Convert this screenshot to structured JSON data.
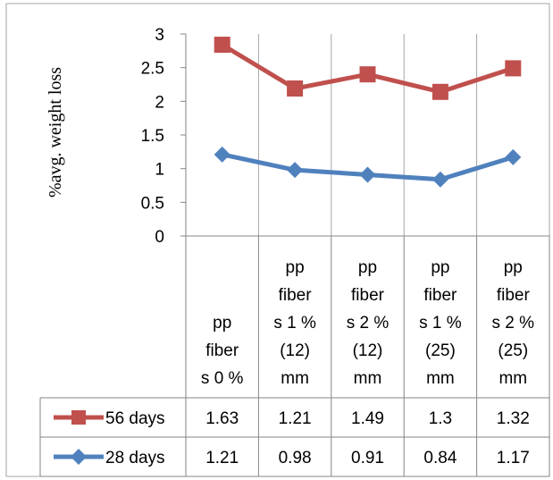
{
  "chart_data": {
    "type": "line",
    "title": "",
    "xlabel": "",
    "ylabel": "%avg. weight loss",
    "ylim": [
      0,
      3
    ],
    "yticks": [
      "0",
      "0.5",
      "1",
      "1.5",
      "2",
      "2.5",
      "3"
    ],
    "grid": "vertical",
    "legend": "data-table-left",
    "categories": [
      [
        "pp",
        "fiber",
        "s 0 %"
      ],
      [
        "pp",
        "fiber",
        "s 1 %",
        "(12)",
        "mm"
      ],
      [
        "pp",
        "fiber",
        "s 2 %",
        "(12)",
        "mm"
      ],
      [
        "pp",
        "fiber",
        "s 1 %",
        "(25)",
        "mm"
      ],
      [
        "pp",
        "fiber",
        "s 2 %",
        "(25)",
        "mm"
      ]
    ],
    "series": [
      {
        "name": "56 days",
        "color": "#c0504d",
        "marker": "square",
        "values": [
          2.84,
          2.19,
          2.4,
          2.14,
          2.49
        ],
        "table_values": [
          "1.63",
          "1.21",
          "1.49",
          "1.3",
          "1.32"
        ]
      },
      {
        "name": "28 days",
        "color": "#4f81bd",
        "marker": "diamond",
        "values": [
          1.21,
          0.98,
          0.91,
          0.84,
          1.17
        ],
        "table_values": [
          "1.21",
          "0.98",
          "0.91",
          "0.84",
          "1.17"
        ]
      }
    ]
  }
}
